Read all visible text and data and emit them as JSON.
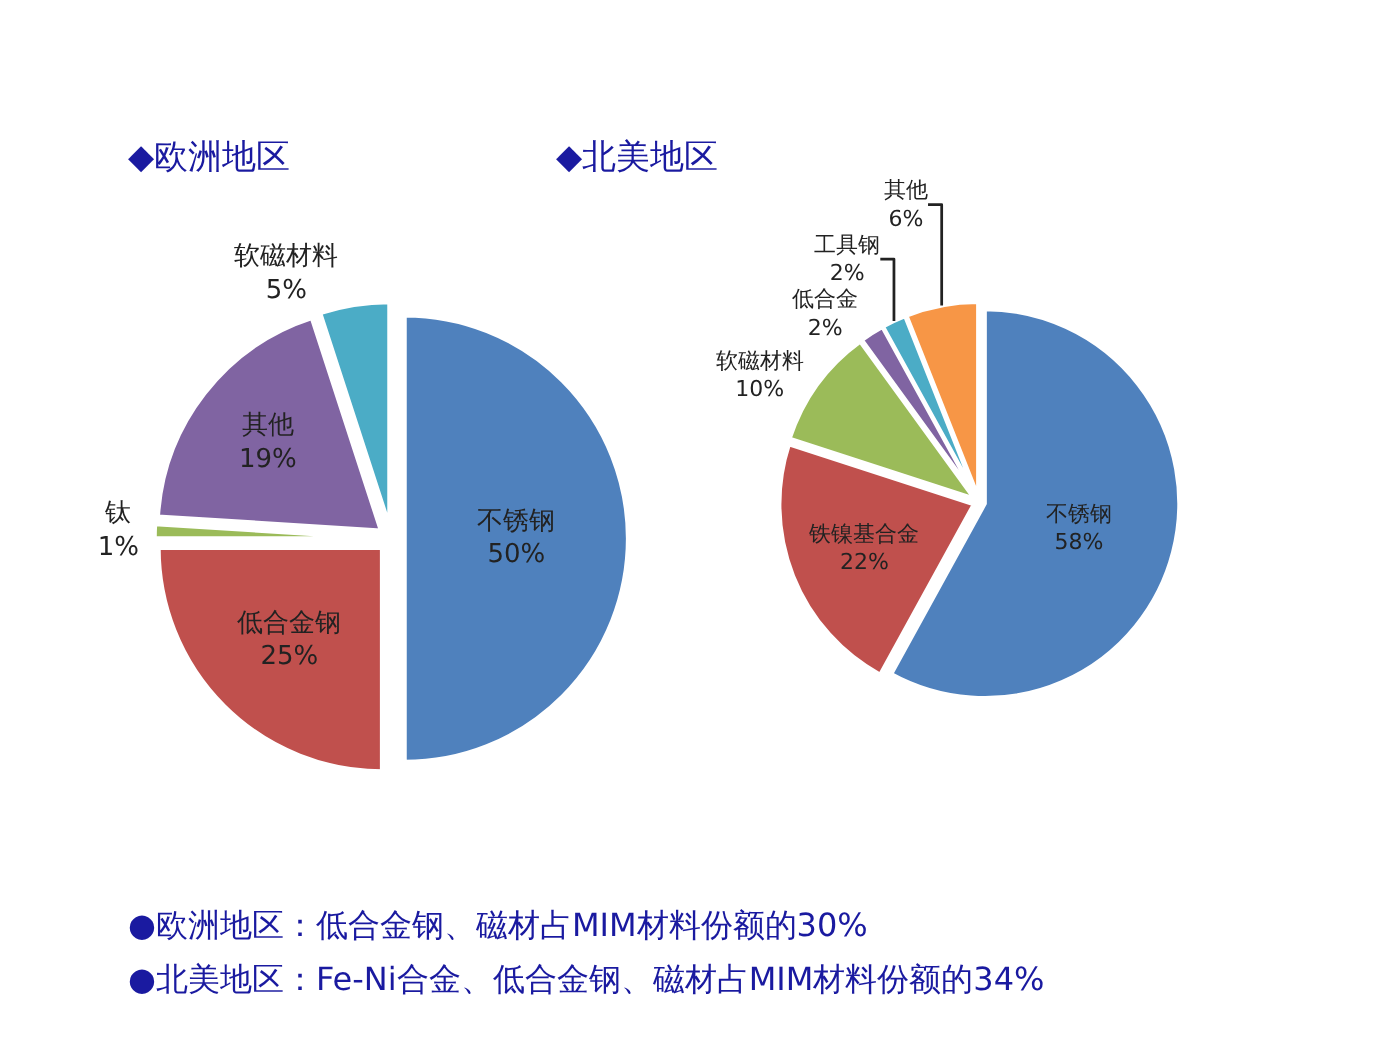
{
  "chart_data": [
    {
      "type": "pie",
      "title": "◆欧洲地区",
      "categories": [
        "不锈钢",
        "低合金钢",
        "钛",
        "其他",
        "软磁材料"
      ],
      "values": [
        50,
        25,
        1,
        19,
        5
      ],
      "value_labels": [
        "50%",
        "25%",
        "1%",
        "19%",
        "5%"
      ],
      "colors": [
        "#4f81bd",
        "#c0504d",
        "#9bbb59",
        "#8064a2",
        "#4bacc6"
      ],
      "annotations": [
        "●欧洲地区：低合金钢、磁材占MIM材料份额的30%"
      ]
    },
    {
      "type": "pie",
      "title": "◆北美地区",
      "categories": [
        "不锈钢",
        "铁镍基合金",
        "软磁材料",
        "低合金",
        "工具钢",
        "其他"
      ],
      "values": [
        58,
        22,
        10,
        2,
        2,
        6
      ],
      "value_labels": [
        "58%",
        "22%",
        "10%",
        "2%",
        "2%",
        "6%"
      ],
      "colors": [
        "#4f81bd",
        "#c0504d",
        "#9bbb59",
        "#8064a2",
        "#4bacc6",
        "#f79646"
      ],
      "annotations": [
        "●北美地区：Fe-Ni合金、低合金钢、磁材占MIM材料份额的34%"
      ]
    }
  ]
}
